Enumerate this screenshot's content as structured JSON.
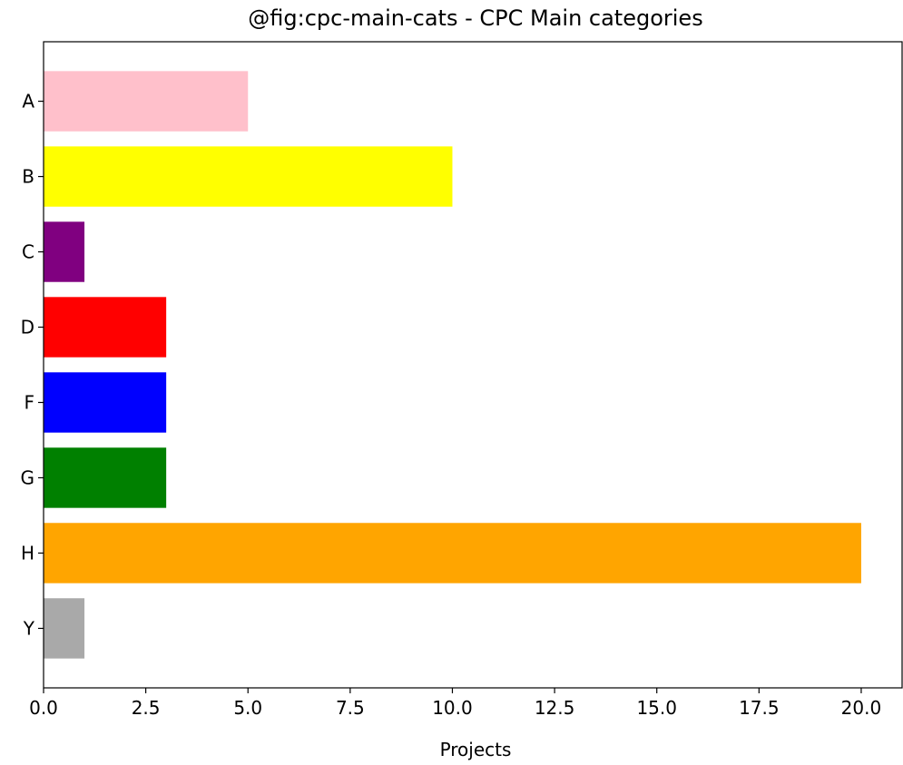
{
  "chart_data": {
    "type": "barh",
    "title": "@fig:cpc-main-cats - CPC Main categories",
    "xlabel": "Projects",
    "categories": [
      "A",
      "B",
      "C",
      "D",
      "F",
      "G",
      "H",
      "Y"
    ],
    "values": [
      5,
      10,
      1,
      3,
      3,
      3,
      20,
      1
    ],
    "colors": [
      "#ffc0cb",
      "#ffff00",
      "#800080",
      "#ff0000",
      "#0000ff",
      "#008000",
      "#ffa500",
      "#a9a9a9"
    ],
    "xlim": [
      0,
      21
    ],
    "xticks": [
      {
        "value": 0,
        "label": "0.0"
      },
      2.5,
      {
        "value": 5,
        "label": "5.0"
      },
      7.5,
      {
        "value": 10,
        "label": "10.0"
      },
      12.5,
      {
        "value": 15,
        "label": "15.0"
      },
      17.5,
      {
        "value": 20,
        "label": "20.0"
      }
    ],
    "grid": false
  }
}
